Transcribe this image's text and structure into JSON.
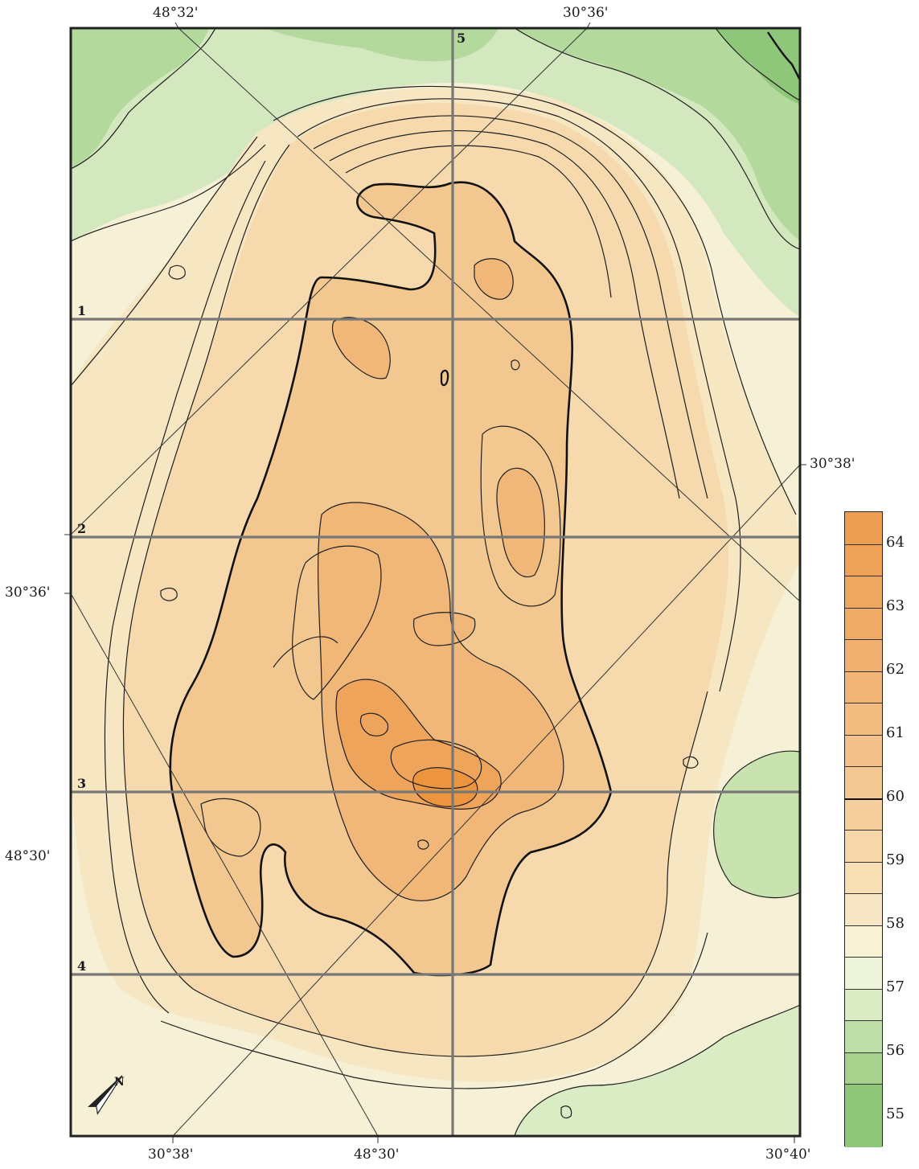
{
  "map": {
    "top_labels": [
      "48°32'",
      "30°36'"
    ],
    "bottom_labels": [
      "30°38'",
      "48°30'",
      "30°40'"
    ],
    "left_labels": [
      "30°36'",
      "48°30'"
    ],
    "right_labels": [
      "30°38'"
    ],
    "profiles": [
      "1",
      "2",
      "3",
      "4",
      "5"
    ],
    "north_arrow": "N",
    "colors": {
      "green_dark": "#8fc77a",
      "green_mid": "#b3d99c",
      "green_light": "#d4e8bf",
      "cream": "#f6f1d6",
      "tan_light": "#f7e1b9",
      "tan": "#f4d09e",
      "orange_light": "#f1bc7e",
      "orange": "#efac64",
      "orange_dark": "#f1a34e"
    }
  },
  "legend": {
    "ticks": [
      "64",
      "63",
      "62",
      "61",
      "60",
      "59",
      "58",
      "57",
      "56",
      "55"
    ],
    "min": 54.5,
    "max": 64.5,
    "bold_value": 60,
    "bands": [
      {
        "from": 54.5,
        "to": 55.5,
        "color": "#8fc77a"
      },
      {
        "from": 55.5,
        "to": 56.0,
        "color": "#a6d28e"
      },
      {
        "from": 56.0,
        "to": 56.5,
        "color": "#bfdfa8"
      },
      {
        "from": 56.5,
        "to": 57.0,
        "color": "#d9ecc4"
      },
      {
        "from": 57.0,
        "to": 57.5,
        "color": "#eef4da"
      },
      {
        "from": 57.5,
        "to": 58.0,
        "color": "#f8f1d4"
      },
      {
        "from": 58.0,
        "to": 58.5,
        "color": "#f8e7c4"
      },
      {
        "from": 58.5,
        "to": 59.0,
        "color": "#f7dfb5"
      },
      {
        "from": 59.0,
        "to": 59.5,
        "color": "#f6d7a9"
      },
      {
        "from": 59.5,
        "to": 60.0,
        "color": "#f5d09e"
      },
      {
        "from": 60.0,
        "to": 60.5,
        "color": "#f4c893"
      },
      {
        "from": 60.5,
        "to": 61.0,
        "color": "#f3c189"
      },
      {
        "from": 61.0,
        "to": 61.5,
        "color": "#f2bb80"
      },
      {
        "from": 61.5,
        "to": 62.0,
        "color": "#f1b578"
      },
      {
        "from": 62.0,
        "to": 62.5,
        "color": "#f0b070"
      },
      {
        "from": 62.5,
        "to": 63.0,
        "color": "#f0ab68"
      },
      {
        "from": 63.0,
        "to": 63.5,
        "color": "#efa760"
      },
      {
        "from": 63.5,
        "to": 64.0,
        "color": "#eea257"
      },
      {
        "from": 64.0,
        "to": 64.5,
        "color": "#ed9e50"
      }
    ]
  }
}
